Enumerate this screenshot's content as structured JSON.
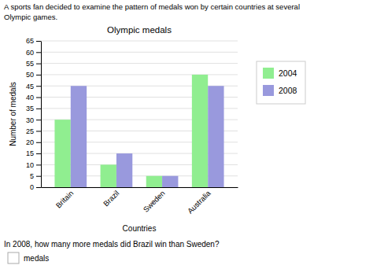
{
  "chart_data": {
    "type": "bar",
    "title": "Olympic medals",
    "xlabel": "Countries",
    "ylabel": "Number of medals",
    "categories": [
      "Britain",
      "Brazil",
      "Sweden",
      "Australia"
    ],
    "series": [
      {
        "name": "2004",
        "color": "#90ee90",
        "values": [
          30,
          10,
          5,
          50
        ]
      },
      {
        "name": "2008",
        "color": "#9999dd",
        "values": [
          45,
          15,
          5,
          45
        ]
      }
    ],
    "ylim": [
      0,
      65
    ],
    "yticks": [
      0,
      5,
      10,
      15,
      20,
      25,
      30,
      35,
      40,
      45,
      50,
      55,
      60,
      65
    ],
    "grid": true,
    "legend": "right",
    "annotations": [
      "A sports fan decided to examine the pattern of medals won by certain countries at several",
      "Olympic games.",
      "In 2008, how many more medals did Brazil win than Sweden?",
      "medals"
    ]
  }
}
